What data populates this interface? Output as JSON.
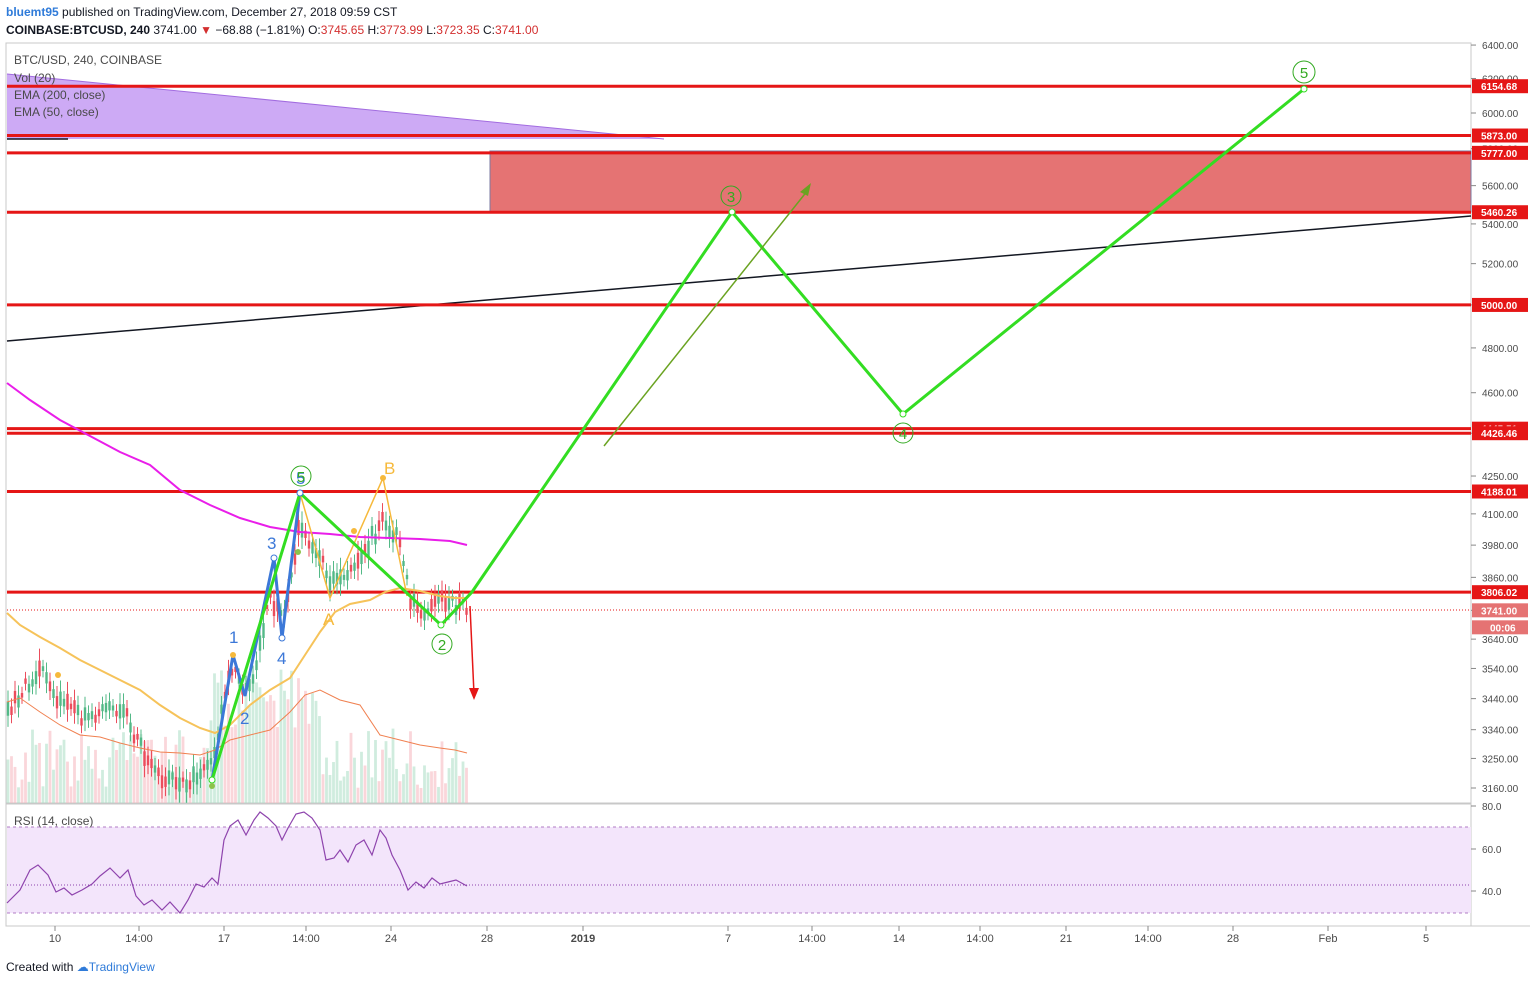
{
  "header": {
    "publisher": "bluemt95",
    "published_text": "published on TradingView.com, December 27, 2018 09:59 CST",
    "symbol": "COINBASE:BTCUSD, 240",
    "last": "3741.00",
    "change_arrow": "▼",
    "change": "−68.88 (−1.81%)",
    "o_label": "O:",
    "o_value": "3745.65",
    "h_label": "H:",
    "h_value": "3773.99",
    "l_label": "L:",
    "l_value": "3723.35",
    "c_label": "C:",
    "c_value": "3741.00"
  },
  "legend": {
    "symbol": "BTC/USD, 240, COINBASE",
    "vol": "Vol (20)",
    "ema200": "EMA (200, close)",
    "ema50": "EMA (50, close)",
    "rsi": "RSI (14, close)"
  },
  "footer": {
    "created_with": "Created with",
    "brand": "TradingView"
  },
  "colors": {
    "support_resistance": "#e51616",
    "projection": "#33dd22",
    "ema200": "#e91ee9",
    "ema50": "#f6c35a",
    "zone": "#e57373",
    "wave_blue": "#3c78d8",
    "wave_orange": "#f6b93b",
    "rsi_line": "#8e44ad",
    "rsi_band": "#f3e5fb",
    "trendline": "#131722"
  },
  "chart_data": {
    "type": "line",
    "price_axis": {
      "ticks": [
        "6400.00",
        "6200.00",
        "6000.00",
        "5800.00",
        "5600.00",
        "5400.00",
        "5200.00",
        "5000.00",
        "4800.00",
        "4600.00",
        "4426.46",
        "4250.00",
        "4100.00",
        "3980.00",
        "3860.00",
        "3741.00",
        "3640.00",
        "3540.00",
        "3440.00",
        "3340.00",
        "3250.00",
        "3160.00"
      ],
      "log_scale": true
    },
    "time_axis": {
      "ticks": [
        "10",
        "14:00",
        "17",
        "14:00",
        "24",
        "28",
        "2019",
        "7",
        "14:00",
        "14",
        "14:00",
        "21",
        "14:00",
        "28",
        "Feb",
        "5"
      ]
    },
    "horizontal_levels": [
      {
        "label": "6154.68",
        "value": 6154.68
      },
      {
        "label": "5873.00",
        "value": 5873.0
      },
      {
        "label": "5777.00",
        "value": 5777.0
      },
      {
        "label": "5460.26",
        "value": 5460.26
      },
      {
        "label": "5000.00",
        "value": 5000.0
      },
      {
        "label": "4445.51",
        "value": 4445.51
      },
      {
        "label": "4426.46",
        "value": 4426.46
      },
      {
        "label": "4188.01",
        "value": 4188.01
      },
      {
        "label": "3806.02",
        "value": 3806.02
      }
    ],
    "last_price": {
      "label": "3741.00",
      "value": 3741.0
    },
    "countdown": "00:06",
    "resistance_zone": {
      "low": 5460.26,
      "high": 5777.0
    },
    "projection_path": {
      "points": [
        {
          "label": "2",
          "t": "Dec 26",
          "price": 3700
        },
        {
          "label": "3",
          "t": "Jan 7",
          "price": 5440
        },
        {
          "label": "4",
          "t": "Jan 14",
          "price": 4500
        },
        {
          "label": "5",
          "t": "Feb 1",
          "price": 6130
        }
      ],
      "labels": [
        "3",
        "4",
        "5",
        "2",
        "5"
      ]
    },
    "wave_labels": {
      "impulse": [
        "1",
        "2",
        "3",
        "4",
        "5"
      ],
      "correction": [
        "A",
        "B"
      ]
    },
    "rsi": {
      "axis_ticks": [
        "80.0",
        "60.0",
        "40.0"
      ],
      "upper_band": 70,
      "lower_band": 30,
      "midline": 43
    }
  }
}
